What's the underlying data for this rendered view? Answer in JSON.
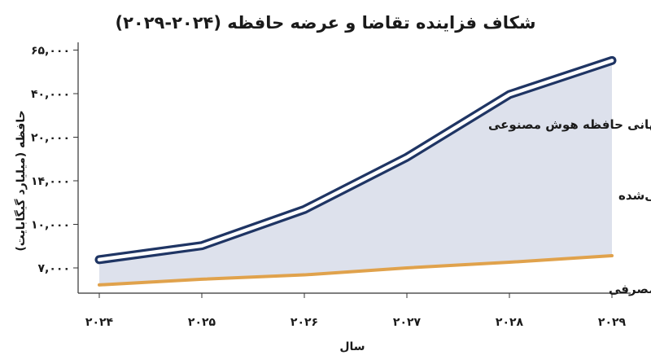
{
  "chart_data": {
    "type": "line",
    "title": "شکاف فزاینده تقاضا و عرضه حافظه (۲۰۲۴-۲۰۲۹)",
    "xlabel": "سال",
    "ylabel": "حافظه (میلیارد گیگابایت)",
    "categories": [
      "۲۰۲۴",
      "۲۰۲۵",
      "۲۰۲۶",
      "۲۰۲۷",
      "۲۰۲۸",
      "۲۰۲۹"
    ],
    "y_ticks": [
      "۷,۰۰۰",
      "۱۰,۰۰۰",
      "۱۴,۰۰۰",
      "۲۰,۰۰۰",
      "۴۰,۰۰۰",
      "۶۵,۰۰۰"
    ],
    "y_tick_levels": [
      0,
      1,
      2,
      3,
      4,
      5
    ],
    "series": [
      {
        "name": "تقاضای جهانی حافظه هوش مصنوعی",
        "values": [
          0.19,
          0.51,
          1.34,
          2.54,
          3.98,
          4.76
        ],
        "color": "#1f3564"
      },
      {
        "name": "عرضه DRAM لپ‌تاپ مصرفی",
        "values": [
          -0.39,
          -0.26,
          -0.16,
          0.0,
          0.13,
          0.28
        ],
        "color": "#e0a24c"
      }
    ],
    "gap_label": "شکاف پیش‌بینی‌شده",
    "gap_fill": "#dde1ec",
    "grid": false
  }
}
